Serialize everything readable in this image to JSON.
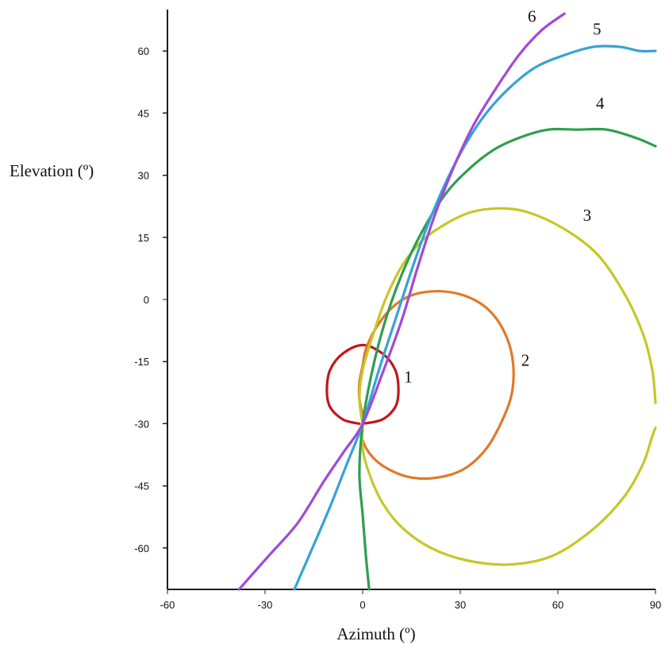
{
  "chart_data": {
    "type": "line",
    "title": "",
    "xlabel": "Azimuth (º)",
    "ylabel": "Elevation (º)",
    "xlim": [
      -60,
      90
    ],
    "ylim": [
      -70,
      70
    ],
    "xticks": [
      -60,
      -30,
      0,
      30,
      60,
      90
    ],
    "yticks": [
      -60,
      -45,
      -30,
      -15,
      0,
      15,
      30,
      45,
      60
    ],
    "x_tick_labels": [
      "-60",
      "-30",
      "0",
      "30",
      "60",
      "90"
    ],
    "y_tick_labels": [
      "-60",
      "-45",
      "-30",
      "-15",
      "0",
      "15",
      "30",
      "45",
      "60"
    ],
    "grid": false,
    "legend": "none",
    "series": [
      {
        "name": "1",
        "color": "#c0181b",
        "points": [
          [
            -1,
            -30
          ],
          [
            -6,
            -29
          ],
          [
            -10,
            -26
          ],
          [
            -11,
            -22
          ],
          [
            -10,
            -17
          ],
          [
            -6,
            -13
          ],
          [
            0,
            -11
          ],
          [
            6,
            -13
          ],
          [
            10,
            -17
          ],
          [
            11,
            -22
          ],
          [
            10,
            -26
          ],
          [
            6,
            -29
          ],
          [
            0,
            -30
          ]
        ]
      },
      {
        "name": "2",
        "color": "#e07a2a",
        "points": [
          [
            0,
            -30
          ],
          [
            0,
            -34
          ],
          [
            3,
            -38
          ],
          [
            8,
            -41
          ],
          [
            15,
            -43
          ],
          [
            23,
            -43
          ],
          [
            31,
            -41
          ],
          [
            38,
            -36
          ],
          [
            43,
            -29
          ],
          [
            46,
            -22
          ],
          [
            46,
            -14
          ],
          [
            43,
            -7
          ],
          [
            38,
            -2
          ],
          [
            31,
            1
          ],
          [
            23,
            2
          ],
          [
            15,
            1
          ],
          [
            9,
            -2
          ],
          [
            4,
            -7
          ],
          [
            1,
            -12
          ],
          [
            0,
            -16
          ],
          [
            -1,
            -20
          ],
          [
            -1,
            -24
          ],
          [
            0,
            -28
          ],
          [
            0,
            -30
          ]
        ]
      },
      {
        "name": "3",
        "color": "#c5c827",
        "points": [
          [
            0,
            -30
          ],
          [
            0,
            -36
          ],
          [
            2,
            -42
          ],
          [
            6,
            -49
          ],
          [
            12,
            -55
          ],
          [
            21,
            -60
          ],
          [
            32,
            -63
          ],
          [
            45,
            -64
          ],
          [
            58,
            -62
          ],
          [
            70,
            -56
          ],
          [
            80,
            -48
          ],
          [
            86,
            -40
          ],
          [
            89,
            -33
          ],
          [
            90,
            -31
          ]
        ]
      },
      {
        "name": "3",
        "color": "#c5c827",
        "points": [
          [
            90,
            -25
          ],
          [
            89,
            -17
          ],
          [
            86,
            -8
          ],
          [
            80,
            2
          ],
          [
            72,
            11
          ],
          [
            62,
            17
          ],
          [
            51,
            21
          ],
          [
            42,
            22
          ],
          [
            33,
            21
          ],
          [
            25,
            18
          ],
          [
            18,
            14
          ],
          [
            12,
            8
          ],
          [
            7,
            0
          ],
          [
            3,
            -9
          ],
          [
            0,
            -17
          ],
          [
            -1,
            -24
          ],
          [
            0,
            -30
          ]
        ]
      },
      {
        "name": "4",
        "color": "#2f9e4f",
        "points": [
          [
            2,
            -70
          ],
          [
            1,
            -62
          ],
          [
            0,
            -52
          ],
          [
            -1,
            -42
          ],
          [
            0,
            -30
          ],
          [
            3,
            -17
          ],
          [
            7,
            -5
          ],
          [
            12,
            6
          ],
          [
            18,
            16
          ],
          [
            25,
            25
          ],
          [
            32,
            31
          ],
          [
            40,
            36
          ],
          [
            48,
            39
          ],
          [
            57,
            41
          ],
          [
            66,
            41
          ],
          [
            75,
            41
          ],
          [
            84,
            39
          ],
          [
            90,
            37
          ]
        ]
      },
      {
        "name": "5",
        "color": "#35a3d7",
        "points": [
          [
            -21,
            -70
          ],
          [
            -16,
            -61
          ],
          [
            -10,
            -50
          ],
          [
            -5,
            -40
          ],
          [
            0,
            -30
          ],
          [
            5,
            -17
          ],
          [
            10,
            -5
          ],
          [
            15,
            7
          ],
          [
            20,
            18
          ],
          [
            26,
            29
          ],
          [
            32,
            38
          ],
          [
            38,
            45
          ],
          [
            45,
            51
          ],
          [
            53,
            56
          ],
          [
            62,
            59
          ],
          [
            71,
            61
          ],
          [
            79,
            61
          ],
          [
            85,
            60
          ],
          [
            90,
            60
          ]
        ]
      },
      {
        "name": "6",
        "color": "#a04ad8",
        "points": [
          [
            -38,
            -70
          ],
          [
            -29,
            -62
          ],
          [
            -20,
            -54
          ],
          [
            -12,
            -44
          ],
          [
            -6,
            -37
          ],
          [
            0,
            -30
          ],
          [
            6,
            -18
          ],
          [
            12,
            -5
          ],
          [
            17,
            8
          ],
          [
            22,
            20
          ],
          [
            28,
            32
          ],
          [
            34,
            42
          ],
          [
            41,
            51
          ],
          [
            48,
            59
          ],
          [
            55,
            65
          ],
          [
            62,
            69
          ]
        ]
      }
    ],
    "annotations": [
      {
        "text": "1",
        "x": 14,
        "y": -20
      },
      {
        "text": "2",
        "x": 50,
        "y": -16
      },
      {
        "text": "3",
        "x": 69,
        "y": 19
      },
      {
        "text": "4",
        "x": 73,
        "y": 46
      },
      {
        "text": "5",
        "x": 72,
        "y": 64
      },
      {
        "text": "6",
        "x": 52,
        "y": 67
      }
    ]
  }
}
